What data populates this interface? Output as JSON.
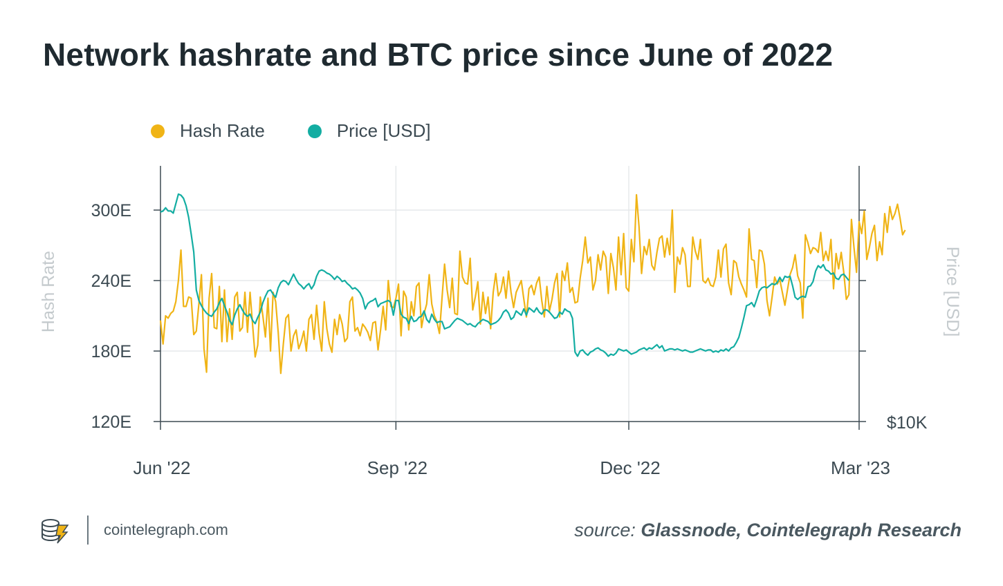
{
  "title": "Network hashrate and BTC price since June of 2022",
  "footer": {
    "site": "cointelegraph.com",
    "source_label": "source:",
    "source_text": "Glassnode, Cointelegraph Research"
  },
  "colors": {
    "hash_rate": "#f0b416",
    "price": "#13ada2",
    "grid": "#e6e9eb",
    "axis": "#3d4a52",
    "tick_label": "#3c4a52",
    "axis_title": "#c4cacd",
    "title": "#1f2a30"
  },
  "chart_data": {
    "type": "line",
    "legend": [
      "Hash Rate",
      "Price [USD]"
    ],
    "legend_position": "top-left",
    "grid": true,
    "x_ticks": [
      "Jun '22",
      "Sep '22",
      "Dec '22",
      "Mar '23"
    ],
    "x_tick_days": [
      0,
      92,
      183,
      273
    ],
    "xlim": [
      0,
      273
    ],
    "left_axis": {
      "label": "Hash Rate",
      "ticks": [
        "120E",
        "180E",
        "240E",
        "300E"
      ],
      "tick_values": [
        120,
        180,
        240,
        300
      ],
      "ylim": [
        120,
        312
      ]
    },
    "right_axis": {
      "label": "Price [USD]",
      "ticks": [
        "$10K"
      ],
      "tick_values": [
        10000
      ],
      "ylim": [
        10000,
        33500
      ]
    },
    "series": [
      {
        "name": "Hash Rate",
        "axis": "left",
        "x_start_day": 0,
        "values": [
          206,
          186,
          210,
          208,
          212,
          214,
          222,
          240,
          266,
          218,
          218,
          226,
          225,
          194,
          197,
          220,
          245,
          182,
          162,
          225,
          246,
          200,
          199,
          235,
          188,
          232,
          188,
          216,
          190,
          226,
          230,
          197,
          200,
          230,
          196,
          230,
          202,
          175,
          185,
          226,
          210,
          192,
          225,
          180,
          230,
          222,
          196,
          161,
          186,
          208,
          211,
          180,
          193,
          198,
          182,
          188,
          197,
          180,
          207,
          211,
          190,
          219,
          195,
          180,
          222,
          199,
          186,
          179,
          207,
          194,
          211,
          203,
          188,
          191,
          222,
          226,
          197,
          200,
          193,
          203,
          200,
          196,
          189,
          204,
          205,
          181,
          198,
          218,
          198,
          240,
          218,
          217,
          225,
          237,
          193,
          231,
          226,
          198,
          222,
          210,
          235,
          238,
          200,
          212,
          220,
          245,
          220,
          210,
          205,
          195,
          225,
          254,
          232,
          217,
          242,
          212,
          211,
          265,
          243,
          238,
          237,
          259,
          215,
          226,
          239,
          203,
          230,
          212,
          226,
          199,
          230,
          246,
          227,
          231,
          243,
          225,
          248,
          230,
          217,
          230,
          235,
          240,
          224,
          209,
          233,
          236,
          228,
          238,
          243,
          223,
          209,
          235,
          214,
          224,
          238,
          246,
          209,
          248,
          240,
          255,
          230,
          234,
          221,
          222,
          242,
          257,
          277,
          255,
          260,
          232,
          240,
          262,
          249,
          265,
          260,
          229,
          263,
          251,
          232,
          277,
          245,
          280,
          234,
          231,
          275,
          256,
          313,
          286,
          246,
          269,
          262,
          275,
          253,
          249,
          264,
          276,
          278,
          260,
          276,
          262,
          300,
          230,
          260,
          254,
          268,
          262,
          235,
          235,
          277,
          265,
          258,
          275,
          240,
          238,
          242,
          236,
          235,
          243,
          266,
          243,
          267,
          271,
          238,
          228,
          257,
          255,
          243,
          237,
          232,
          226,
          284,
          258,
          257,
          234,
          266,
          265,
          254,
          223,
          210,
          226,
          243,
          237,
          241,
          230,
          219,
          232,
          245,
          251,
          262,
          244,
          238,
          208,
          279,
          272,
          263,
          268,
          267,
          264,
          281,
          257,
          265,
          257,
          275,
          233,
          263,
          250,
          264,
          247,
          224,
          228,
          292,
          268,
          247,
          290,
          280,
          299,
          258,
          268,
          280,
          287,
          257,
          273,
          262,
          297,
          281,
          303,
          292,
          297,
          305,
          293,
          279,
          283
        ]
      },
      {
        "name": "Price [USD]",
        "axis": "right",
        "x_start_day": 0,
        "values": [
          29900,
          30000,
          30300,
          30000,
          30000,
          29800,
          30700,
          31600,
          31500,
          31200,
          30500,
          29400,
          27800,
          26100,
          22500,
          21500,
          21000,
          20600,
          20300,
          20100,
          20000,
          20400,
          20700,
          21300,
          21700,
          21000,
          20400,
          19600,
          19200,
          20100,
          20700,
          21100,
          20600,
          20200,
          20000,
          20200,
          19600,
          19300,
          19900,
          20400,
          21300,
          21900,
          22400,
          22500,
          22100,
          21800,
          22700,
          23200,
          23400,
          23300,
          23000,
          23500,
          24000,
          23500,
          23100,
          22900,
          22600,
          22900,
          23100,
          22600,
          23000,
          23800,
          24300,
          24400,
          24300,
          24100,
          24000,
          23800,
          23500,
          23800,
          23600,
          23300,
          23400,
          23100,
          22900,
          22600,
          22700,
          22500,
          22200,
          21700,
          20700,
          21200,
          21400,
          21500,
          21700,
          20900,
          21200,
          21300,
          21400,
          21500,
          21300,
          20100,
          21500,
          21500,
          20200,
          19900,
          19800,
          19300,
          20000,
          19500,
          19600,
          19900,
          20000,
          20500,
          19700,
          19400,
          20200,
          19700,
          19400,
          19500,
          19500,
          18800,
          18900,
          19000,
          19300,
          19600,
          19800,
          19700,
          19600,
          19400,
          19200,
          19300,
          19100,
          19000,
          19300,
          19500,
          19700,
          19600,
          19500,
          19200,
          19300,
          19400,
          19600,
          19900,
          20400,
          20600,
          20300,
          19700,
          19900,
          20500,
          20300,
          20100,
          20700,
          20100,
          20800,
          20600,
          20400,
          20800,
          20400,
          20200,
          20600,
          20600,
          20400,
          20100,
          19800,
          19900,
          20400,
          20200,
          20700,
          20500,
          20400,
          19800,
          16600,
          16200,
          16700,
          16800,
          16500,
          16300,
          16600,
          16700,
          16900,
          17000,
          16800,
          16700,
          16500,
          16200,
          16400,
          16300,
          16500,
          16900,
          16800,
          16700,
          16800,
          16600,
          16400,
          16500,
          16600,
          16800,
          16900,
          17000,
          16800,
          17000,
          16900,
          17100,
          17300,
          17000,
          17200,
          16700,
          16800,
          16900,
          16900,
          16800,
          16900,
          16800,
          16700,
          16800,
          16700,
          16600,
          16600,
          16700,
          16800,
          16900,
          16800,
          16700,
          16800,
          16800,
          16600,
          16700,
          16600,
          16800,
          16700,
          16900,
          16700,
          17000,
          17100,
          17500,
          18000,
          18900,
          19900,
          21000,
          21100,
          21300,
          20900,
          21600,
          22400,
          22700,
          22800,
          22700,
          22900,
          23100,
          23000,
          23200,
          23700,
          23300,
          23800,
          23700,
          23800,
          22900,
          21800,
          21600,
          21800,
          21900,
          21800,
          22800,
          22900,
          23300,
          24300,
          24800,
          24600,
          24900,
          24400,
          24300,
          24000,
          24100,
          23600,
          23500,
          23900,
          24000,
          23700,
          23400
        ]
      }
    ]
  }
}
